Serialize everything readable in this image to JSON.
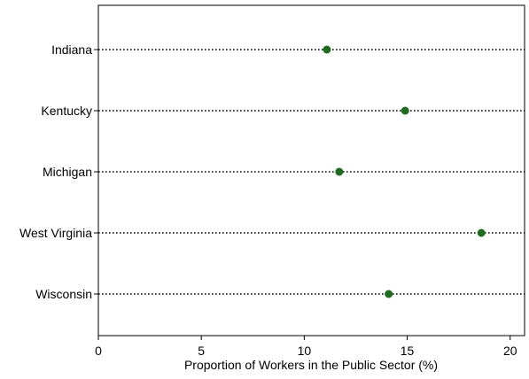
{
  "chart_data": {
    "type": "scatter",
    "style": "dot-plot",
    "categories": [
      "Indiana",
      "Kentucky",
      "Michigan",
      "West Virginia",
      "Wisconsin"
    ],
    "values": [
      11.1,
      14.9,
      11.7,
      18.6,
      14.1
    ],
    "xlabel": "Proportion of Workers in the Public Sector (%)",
    "ylabel": "",
    "xlim": [
      0,
      20.7
    ],
    "xticks": [
      0,
      5,
      10,
      15,
      20
    ],
    "grid": false,
    "guide_lines": "dotted",
    "marker_color": "#1f6b1f",
    "line_color": "#000000"
  }
}
